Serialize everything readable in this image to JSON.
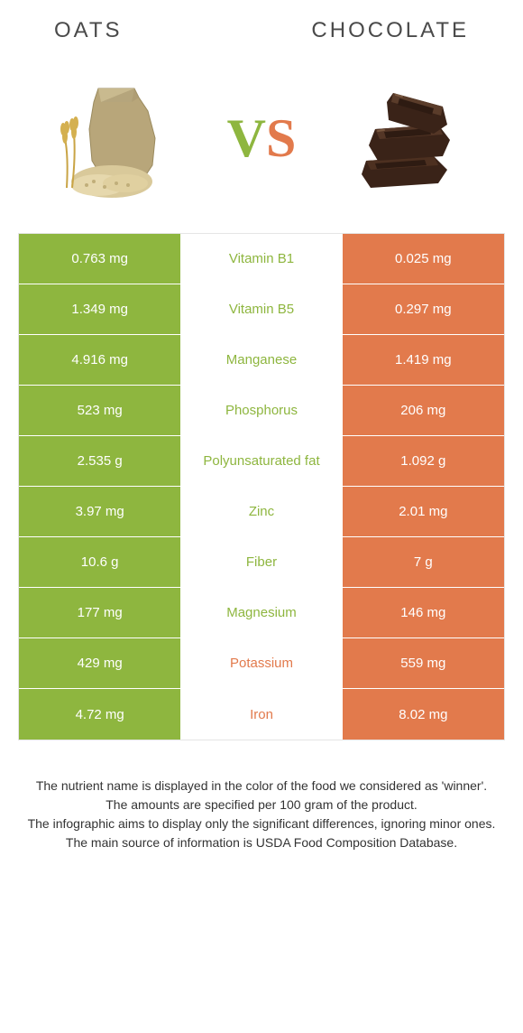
{
  "header": {
    "left": "Oats",
    "right": "Chocolate"
  },
  "vs": {
    "v": "V",
    "s": "S"
  },
  "colors": {
    "oats": "#8eb63f",
    "chocolate": "#e27a4c",
    "mid_bg": "#ffffff"
  },
  "table": {
    "rows": [
      {
        "left": "0.763 mg",
        "label": "Vitamin B1",
        "right": "0.025 mg",
        "winner": "oats"
      },
      {
        "left": "1.349 mg",
        "label": "Vitamin B5",
        "right": "0.297 mg",
        "winner": "oats"
      },
      {
        "left": "4.916 mg",
        "label": "Manganese",
        "right": "1.419 mg",
        "winner": "oats"
      },
      {
        "left": "523 mg",
        "label": "Phosphorus",
        "right": "206 mg",
        "winner": "oats"
      },
      {
        "left": "2.535 g",
        "label": "Polyunsaturated fat",
        "right": "1.092 g",
        "winner": "oats"
      },
      {
        "left": "3.97 mg",
        "label": "Zinc",
        "right": "2.01 mg",
        "winner": "oats"
      },
      {
        "left": "10.6 g",
        "label": "Fiber",
        "right": "7 g",
        "winner": "oats"
      },
      {
        "left": "177 mg",
        "label": "Magnesium",
        "right": "146 mg",
        "winner": "oats"
      },
      {
        "left": "429 mg",
        "label": "Potassium",
        "right": "559 mg",
        "winner": "chocolate"
      },
      {
        "left": "4.72 mg",
        "label": "Iron",
        "right": "8.02 mg",
        "winner": "chocolate"
      }
    ]
  },
  "footer": {
    "line1": "The nutrient name is displayed in the color of the food we considered as 'winner'.",
    "line2": "The amounts are specified per 100 gram of the product.",
    "line3": "The infographic aims to display only the significant differences, ignoring minor ones.",
    "line4": "The main source of information is USDA Food Composition Database."
  }
}
